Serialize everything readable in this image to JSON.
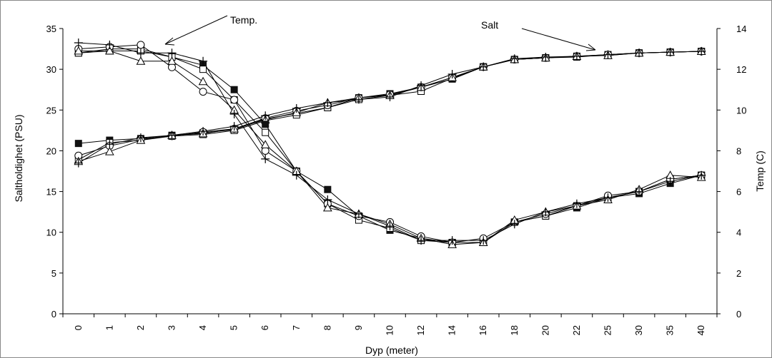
{
  "chart_data": {
    "type": "line",
    "xlabel": "Dyp (meter)",
    "ylabel_left": "Saltholdighet (PSU)",
    "ylabel_right": "Temp (C)",
    "categories": [
      "0",
      "1",
      "2",
      "3",
      "4",
      "5",
      "6",
      "7",
      "8",
      "9",
      "10",
      "12",
      "14",
      "16",
      "18",
      "20",
      "22",
      "25",
      "30",
      "35",
      "40"
    ],
    "ylim_left": [
      0,
      35
    ],
    "yticks_left": [
      "0",
      "5",
      "10",
      "15",
      "20",
      "25",
      "30",
      "35"
    ],
    "ylim_right": [
      0,
      14
    ],
    "yticks_right": [
      "0",
      "2",
      "4",
      "6",
      "8",
      "10",
      "12",
      "14"
    ],
    "grid": false,
    "legend": "none",
    "annotations": [
      {
        "text": "Temp.",
        "points_to": "temperature curves"
      },
      {
        "text": "Salt",
        "points_to": "salinity curves"
      }
    ],
    "salinity_axis": "left",
    "temperature_axis": "right",
    "series": [
      {
        "axis": "left",
        "marker": "filled-square",
        "values": [
          20.9,
          21.3,
          21.5,
          21.9,
          22.2,
          22.6,
          23.9,
          24.6,
          25.3,
          26.5,
          27.0,
          27.8,
          28.8,
          30.3,
          31.2,
          31.4,
          31.5,
          31.8,
          32.0,
          32.1,
          32.2
        ]
      },
      {
        "axis": "left",
        "marker": "open-square",
        "values": [
          18.9,
          21.0,
          21.3,
          21.8,
          22.0,
          22.5,
          23.7,
          24.4,
          25.3,
          26.3,
          26.8,
          27.3,
          28.9,
          30.3,
          31.2,
          31.4,
          31.6,
          31.7,
          32.0,
          32.1,
          32.2
        ]
      },
      {
        "axis": "left",
        "marker": "open-circle",
        "values": [
          19.4,
          20.6,
          21.4,
          21.8,
          22.3,
          22.7,
          24.0,
          24.9,
          25.6,
          26.5,
          26.9,
          27.8,
          29.0,
          30.3,
          31.2,
          31.4,
          31.6,
          31.8,
          32.0,
          32.1,
          32.2
        ]
      },
      {
        "axis": "left",
        "marker": "open-triangle",
        "values": [
          18.7,
          19.9,
          21.3,
          21.9,
          22.1,
          22.7,
          23.8,
          24.7,
          25.9,
          26.5,
          26.8,
          27.8,
          29.0,
          30.3,
          31.2,
          31.4,
          31.6,
          31.7,
          32.0,
          32.1,
          32.2
        ]
      },
      {
        "axis": "left",
        "marker": "plus",
        "values": [
          18.5,
          20.8,
          21.6,
          21.9,
          22.4,
          23.0,
          24.3,
          25.2,
          25.9,
          26.3,
          26.6,
          28.0,
          29.4,
          30.3,
          31.3,
          31.5,
          31.6,
          31.8,
          32.0,
          32.1,
          32.2
        ]
      },
      {
        "axis": "right",
        "marker": "filled-square",
        "values": [
          12.8,
          13.0,
          13.0,
          12.6,
          12.2,
          11.0,
          9.3,
          7.0,
          6.1,
          4.8,
          4.1,
          3.7,
          3.5,
          3.5,
          4.5,
          4.8,
          5.2,
          5.7,
          5.9,
          6.4,
          6.8
        ]
      },
      {
        "axis": "right",
        "marker": "open-square",
        "values": [
          12.8,
          12.9,
          12.9,
          12.6,
          12.0,
          10.5,
          8.9,
          7.0,
          5.4,
          4.6,
          4.2,
          3.6,
          3.5,
          3.5,
          4.5,
          4.8,
          5.3,
          5.7,
          6.0,
          6.6,
          6.8
        ]
      },
      {
        "axis": "right",
        "marker": "open-circle",
        "values": [
          13.0,
          13.1,
          13.2,
          12.1,
          10.9,
          10.5,
          8.0,
          7.0,
          5.4,
          4.8,
          4.5,
          3.8,
          3.5,
          3.7,
          4.5,
          4.9,
          5.3,
          5.8,
          6.0,
          6.6,
          6.8
        ]
      },
      {
        "axis": "right",
        "marker": "open-triangle",
        "values": [
          12.9,
          12.9,
          12.4,
          12.4,
          11.4,
          10.0,
          8.3,
          7.0,
          5.2,
          4.9,
          4.4,
          3.7,
          3.4,
          3.5,
          4.6,
          5.0,
          5.3,
          5.6,
          6.1,
          6.8,
          6.7
        ]
      },
      {
        "axis": "right",
        "marker": "plus",
        "values": [
          13.3,
          13.2,
          12.8,
          12.8,
          12.4,
          9.8,
          7.6,
          6.8,
          5.6,
          4.9,
          4.3,
          3.6,
          3.6,
          3.6,
          4.4,
          5.0,
          5.4,
          5.7,
          6.0,
          6.5,
          6.8
        ]
      }
    ]
  }
}
